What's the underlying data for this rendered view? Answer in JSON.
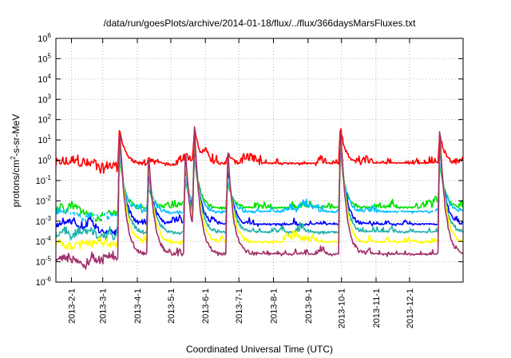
{
  "chart_data": {
    "type": "line",
    "title": "/data/run/goesPlots/archive/2014-01-18/flux/../flux/366daysMarsFluxes.txt",
    "xlabel": "Coordinated Universal Time (UTC)",
    "ylabel": "protons/cm²-s-sr-MeV",
    "ylabel_parts": [
      "protons/cm",
      "2",
      "-s-sr-MeV"
    ],
    "yscale": "log",
    "ylim_exp": [
      -6,
      6
    ],
    "ytick_exponents": [
      -6,
      -5,
      -4,
      -3,
      -2,
      -1,
      0,
      1,
      2,
      3,
      4,
      5,
      6
    ],
    "xlim": [
      "2013-01-18",
      "2014-01-18"
    ],
    "xticks": [
      "2013-2-1",
      "2013-3-1",
      "2013-4-1",
      "2013-5-1",
      "2013-6-1",
      "2013-7-1",
      "2013-8-1",
      "2013-9-1",
      "2013-10-1",
      "2013-11-1",
      "2013-12-1"
    ],
    "grid": true,
    "event_peaks": [
      {
        "date": "2013-03-16",
        "value": 100
      },
      {
        "date": "2013-04-11",
        "value": 3
      },
      {
        "date": "2013-05-14",
        "value": 5
      },
      {
        "date": "2013-05-22",
        "value": 100
      },
      {
        "date": "2013-06-21",
        "value": 5
      },
      {
        "date": "2013-09-30",
        "value": 100
      },
      {
        "date": "2013-12-28",
        "value": 50
      }
    ],
    "series": [
      {
        "color": "#ff0000",
        "baseline": 0.6
      },
      {
        "color": "#00e000",
        "baseline": 0.004
      },
      {
        "color": "#00bfff",
        "baseline": 0.0025
      },
      {
        "color": "#ffffff",
        "baseline": 0.0012
      },
      {
        "color": "#0000ff",
        "baseline": 0.0006
      },
      {
        "color": "#20b2aa",
        "baseline": 0.00025
      },
      {
        "color": "#ffff00",
        "baseline": 8e-05
      },
      {
        "color": "#a0306a",
        "baseline": 2e-05
      }
    ]
  }
}
